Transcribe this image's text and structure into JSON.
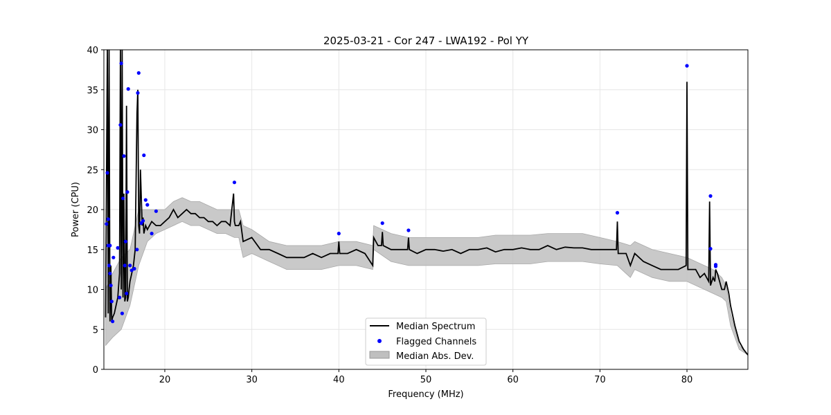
{
  "chart_data": {
    "type": "line",
    "title": "2025-03-21 - Cor 247 - LWA192 - Pol YY",
    "xlabel": "Frequency (MHz)",
    "ylabel": "Power (CPU)",
    "xlim": [
      13,
      87
    ],
    "ylim": [
      0,
      40
    ],
    "xticks": [
      20,
      30,
      40,
      50,
      60,
      70,
      80
    ],
    "yticks": [
      0,
      5,
      10,
      15,
      20,
      25,
      30,
      35,
      40
    ],
    "grid": true,
    "legend_position": "bottom-center",
    "legend": [
      "Median Spectrum",
      "Flagged Channels",
      "Median Abs. Dev."
    ],
    "colors": {
      "median": "#000000",
      "flagged": "#0000ff",
      "mad_fill": "#bfbfbf",
      "grid": "#e6e6e6"
    },
    "series": [
      {
        "name": "Median Spectrum",
        "type": "line",
        "x": [
          13.2,
          13.4,
          13.5,
          13.6,
          13.7,
          13.8,
          13.9,
          14.0,
          14.2,
          14.4,
          14.6,
          14.8,
          14.9,
          15.0,
          15.1,
          15.2,
          15.3,
          15.4,
          15.5,
          15.6,
          15.7,
          15.8,
          15.9,
          16.0,
          16.2,
          16.4,
          16.6,
          16.8,
          16.9,
          17.0,
          17.1,
          17.2,
          17.4,
          17.5,
          17.6,
          17.8,
          18.0,
          18.5,
          19.0,
          19.5,
          20.0,
          20.5,
          21.0,
          21.5,
          22.0,
          22.5,
          23.0,
          23.5,
          24.0,
          24.5,
          25.0,
          25.5,
          26.0,
          26.5,
          27.0,
          27.5,
          27.9,
          28.0,
          28.1,
          28.5,
          28.7,
          29.0,
          30.0,
          31.0,
          32.0,
          33.0,
          34.0,
          35.0,
          36.0,
          37.0,
          38.0,
          39.0,
          39.9,
          40.0,
          40.1,
          41.0,
          42.0,
          43.0,
          43.9,
          44.0,
          44.5,
          44.9,
          45.0,
          45.1,
          46.0,
          47.0,
          47.9,
          48.0,
          48.1,
          49.0,
          50.0,
          51.0,
          52.0,
          53.0,
          54.0,
          55.0,
          56.0,
          57.0,
          58.0,
          59.0,
          60.0,
          61.0,
          62.0,
          63.0,
          64.0,
          65.0,
          66.0,
          67.0,
          68.0,
          69.0,
          70.0,
          71.0,
          71.9,
          72.0,
          72.1,
          73.0,
          73.5,
          74.0,
          75.0,
          76.0,
          77.0,
          78.0,
          79.0,
          79.9,
          80.0,
          80.1,
          81.0,
          81.5,
          82.0,
          82.5,
          82.6,
          82.7,
          83.0,
          83.2,
          83.3,
          83.5,
          84.0,
          84.3,
          84.5,
          84.8,
          85.0,
          85.5,
          86.0,
          86.5,
          87.0
        ],
        "values": [
          6.5,
          40,
          7,
          40,
          6,
          13,
          6,
          6.5,
          7,
          8,
          9,
          12,
          40,
          10,
          40,
          9,
          22,
          8.5,
          9,
          33,
          8.5,
          9,
          10,
          11,
          12,
          13,
          15,
          32,
          35,
          18,
          17,
          25,
          18,
          19,
          17,
          18,
          17.5,
          18.5,
          18,
          18,
          18.5,
          19,
          20,
          19,
          19.5,
          20,
          19.5,
          19.5,
          19,
          19,
          18.5,
          18.5,
          18,
          18.5,
          18.5,
          18,
          22,
          18.5,
          18,
          18,
          18.5,
          16,
          16.5,
          15,
          15,
          14.5,
          14,
          14,
          14,
          14.5,
          14,
          14.5,
          14.5,
          16,
          14.5,
          14.5,
          15,
          14.5,
          13,
          16.5,
          15.5,
          15.5,
          17.2,
          15.5,
          15,
          15,
          15,
          16.5,
          15,
          14.5,
          15,
          15,
          14.8,
          15,
          14.5,
          15,
          15,
          15.2,
          14.7,
          15,
          15,
          15.2,
          15,
          15,
          15.5,
          15,
          15.3,
          15.2,
          15.2,
          15,
          15,
          15,
          15,
          18.5,
          14.5,
          14.5,
          13,
          14.5,
          13.5,
          13,
          12.5,
          12.5,
          12.5,
          13,
          36,
          12.5,
          12.5,
          11.5,
          12,
          11,
          21,
          10.5,
          11.5,
          11,
          12.5,
          12,
          10,
          10,
          11,
          9.5,
          8,
          5.5,
          3.5,
          2.5,
          1.8
        ]
      },
      {
        "name": "Flagged Channels",
        "type": "scatter",
        "x": [
          13.3,
          13.4,
          13.5,
          13.5,
          13.6,
          13.7,
          13.7,
          13.8,
          13.9,
          14.0,
          14.1,
          14.6,
          14.8,
          14.9,
          15.0,
          15.1,
          15.2,
          15.3,
          15.4,
          15.5,
          15.6,
          15.7,
          15.8,
          16.0,
          16.2,
          16.5,
          16.8,
          16.9,
          17.0,
          17.3,
          17.5,
          17.6,
          17.8,
          18.0,
          18.5,
          19.0,
          28.0,
          40.0,
          45.0,
          48.0,
          72.0,
          80.0,
          82.7,
          82.7,
          83.3,
          83.3
        ],
        "values": [
          18.2,
          24.6,
          15.5,
          18.8,
          13.0,
          15.5,
          12.0,
          10.5,
          8.5,
          6.0,
          14.0,
          15.2,
          9.0,
          30.6,
          38.3,
          7.0,
          21.4,
          26.7,
          13.0,
          16.0,
          9.5,
          22.2,
          35.1,
          13.0,
          12.4,
          12.6,
          15.0,
          34.6,
          37.1,
          18.3,
          18.6,
          26.8,
          21.2,
          20.6,
          17.0,
          19.8,
          23.4,
          17.0,
          18.3,
          17.4,
          19.6,
          38.0,
          21.7,
          15.1,
          13.1,
          12.9
        ]
      },
      {
        "name": "Median Abs. Dev.",
        "type": "area",
        "x": [
          13.2,
          14.0,
          15.0,
          16.0,
          17.0,
          18.0,
          19.0,
          20.0,
          21.0,
          22.0,
          23.0,
          24.0,
          25.0,
          26.0,
          27.0,
          28.0,
          28.5,
          29.0,
          30.0,
          32.0,
          34.0,
          36.0,
          38.0,
          40.0,
          42.0,
          43.9,
          44.0,
          46.0,
          48.0,
          50.0,
          52.0,
          54.0,
          56.0,
          58.0,
          60.0,
          62.0,
          64.0,
          66.0,
          68.0,
          70.0,
          72.0,
          73.5,
          74.0,
          76.0,
          78.0,
          80.0,
          82.0,
          83.0,
          84.0,
          84.5,
          85.0,
          86.0,
          87.0
        ],
        "lower": [
          3.0,
          4.0,
          5.0,
          8.0,
          13.0,
          16.0,
          17.0,
          17.5,
          18.0,
          18.5,
          18.0,
          18.0,
          17.5,
          17.0,
          17.0,
          16.5,
          16.5,
          14.0,
          14.5,
          13.5,
          12.5,
          12.5,
          12.5,
          13.0,
          13.0,
          12.5,
          15.0,
          13.5,
          13.0,
          13.0,
          13.0,
          13.0,
          13.0,
          13.2,
          13.2,
          13.2,
          13.5,
          13.5,
          13.5,
          13.2,
          13.0,
          11.5,
          12.5,
          11.5,
          11.0,
          11.0,
          10.0,
          9.5,
          9.0,
          8.5,
          5.5,
          2.5,
          1.8
        ],
        "upper": [
          10.0,
          12.0,
          14.0,
          15.0,
          20.0,
          20.0,
          20.0,
          20.0,
          21.0,
          21.5,
          21.0,
          21.0,
          20.5,
          20.0,
          20.0,
          20.0,
          20.0,
          18.0,
          17.5,
          16.0,
          15.5,
          15.5,
          15.5,
          16.0,
          16.0,
          15.5,
          18.0,
          17.0,
          16.5,
          16.5,
          16.5,
          16.5,
          16.5,
          16.8,
          16.8,
          16.8,
          17.0,
          17.0,
          17.0,
          16.5,
          16.0,
          15.5,
          16.0,
          15.0,
          14.5,
          14.0,
          13.0,
          12.5,
          11.5,
          10.5,
          7.0,
          3.0,
          1.9
        ]
      }
    ]
  }
}
